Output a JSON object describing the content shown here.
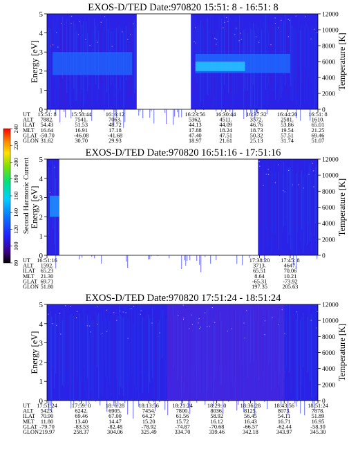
{
  "chart_data": [
    {
      "type": "heatmap",
      "title": "EXOS-D/TED",
      "date": "Date:970820",
      "time_range": "15:51: 8 - 16:51: 8",
      "ylabel": "Energy [eV]",
      "y2label": "Temperature [K]",
      "ylim": [
        0,
        5
      ],
      "y_ticks": [
        "0",
        "1",
        "2",
        "3",
        "4",
        "5"
      ],
      "y2lim": [
        0,
        12000
      ],
      "y2_ticks": [
        "0",
        "2000",
        "4000",
        "6000",
        "8000",
        "10000",
        "12000"
      ],
      "data_gaps": [
        [
          "16:11:00",
          "16:23:00"
        ]
      ],
      "ephemeris": {
        "row_labels": [
          "UT",
          "ALT",
          "ILAT",
          "MLT",
          "GLAT",
          "GLON"
        ],
        "columns": [
          [
            "15:51: 8",
            "7882.",
            "54.43",
            "16.64",
            "-50.70",
            "31.62"
          ],
          [
            "15:58:44",
            "7541.",
            "51.53",
            "16.91",
            "-46.08",
            "30.70"
          ],
          [
            "16: 6:12",
            "7063.",
            "48.72",
            "17.18",
            "-41.68",
            "29.93"
          ],
          [
            "16:23:56",
            "5362.",
            "44.13",
            "17.88",
            "47.40",
            "18.97"
          ],
          [
            "16:30:44",
            "4511.",
            "44.09",
            "18.24",
            "47.51",
            "21.61"
          ],
          [
            "16:37:32",
            "3572.",
            "46.76",
            "18.73",
            "50.32",
            "25.13"
          ],
          [
            "16:44:20",
            "2581.",
            "53.86",
            "19.54",
            "57.51",
            "31.74"
          ],
          [
            "16:51: 8",
            "1610.",
            "65.01",
            "21.25",
            "69.46",
            "51.07"
          ]
        ]
      }
    },
    {
      "type": "heatmap",
      "title": "EXOS-D/TED",
      "date": "Date:970820",
      "time_range": "16:51:16 - 17:51:16",
      "ylabel": "Energy [eV]",
      "y2label": "Temperature [K]",
      "ylim": [
        0,
        5
      ],
      "y_ticks": [
        "0",
        "1",
        "2",
        "3",
        "4",
        "5"
      ],
      "y2lim": [
        0,
        12000
      ],
      "y2_ticks": [
        "0",
        "2000",
        "4000",
        "6000",
        "8000",
        "10000",
        "12000"
      ],
      "data_gaps": [
        [
          "16:54:00",
          "17:38:00"
        ]
      ],
      "ephemeris": {
        "row_labels": [
          "UT",
          "ALT",
          "ILAT",
          "MLT",
          "GLAT",
          "GLON"
        ],
        "columns": [
          [
            "16:51:16",
            "1592.",
            "65.23",
            "21.30",
            "69.71",
            "51.80"
          ],
          [
            "17:38:20",
            "3713.",
            "65.51",
            "8.64",
            "-65.31",
            "197.35"
          ],
          [
            "17:45: 8",
            "4647.",
            "70.06",
            "10.21",
            "-73.92",
            "205.63"
          ]
        ]
      }
    },
    {
      "type": "heatmap",
      "title": "EXOS-D/TED",
      "date": "Date:970820",
      "time_range": "17:51:24 - 18:51:24",
      "ylabel": "Energy [eV]",
      "y2label": "Temperature [K]",
      "ylim": [
        0,
        5
      ],
      "y_ticks": [
        "0",
        "1",
        "2",
        "3",
        "4",
        "5"
      ],
      "y2lim": [
        0,
        12000
      ],
      "y2_ticks": [
        "0",
        "2000",
        "4000",
        "6000",
        "8000",
        "10000",
        "12000"
      ],
      "data_gaps": [],
      "ephemeris": {
        "row_labels": [
          "UT",
          "ALT",
          "ILAT",
          "MLT",
          "GLAT",
          "GLON"
        ],
        "columns": [
          [
            "17:51:24",
            "5425.",
            "70.90",
            "11.80",
            "-79.70",
            "219.97"
          ],
          [
            "17:59: 0",
            "6242.",
            "69.46",
            "13.40",
            "-83.53",
            "258.37"
          ],
          [
            "18: 6:28",
            "6905.",
            "67.00",
            "14.47",
            "-82.48",
            "304.06"
          ],
          [
            "18:13:56",
            "7454.",
            "64.27",
            "15.20",
            "-78.92",
            "325.49"
          ],
          [
            "18:21:24",
            "7800.",
            "61.56",
            "15.72",
            "-74.87",
            "334.70"
          ],
          [
            "18:29: 0",
            "8036.",
            "58.92",
            "16.12",
            "-70.68",
            "339.46"
          ],
          [
            "18:36:28",
            "8125.",
            "56.45",
            "16.43",
            "-66.57",
            "342.18"
          ],
          [
            "18:43:56",
            "8073.",
            "54.11",
            "16.71",
            "-62.44",
            "343.97"
          ],
          [
            "18:51:24",
            "7878.",
            "51.89",
            "16.95",
            "-58.30",
            "345.30"
          ]
        ]
      }
    }
  ],
  "colorbar": {
    "label": "Second Harmonic Current",
    "ticks": [
      "80",
      "100",
      "120",
      "140",
      "160",
      "180",
      "200",
      "220",
      "240"
    ],
    "colors": [
      "#000000",
      "#5a00a0",
      "#2020ff",
      "#0a78ff",
      "#00d0ff",
      "#00e080",
      "#80e000",
      "#ffe000",
      "#ff8000",
      "#ff0000"
    ]
  }
}
